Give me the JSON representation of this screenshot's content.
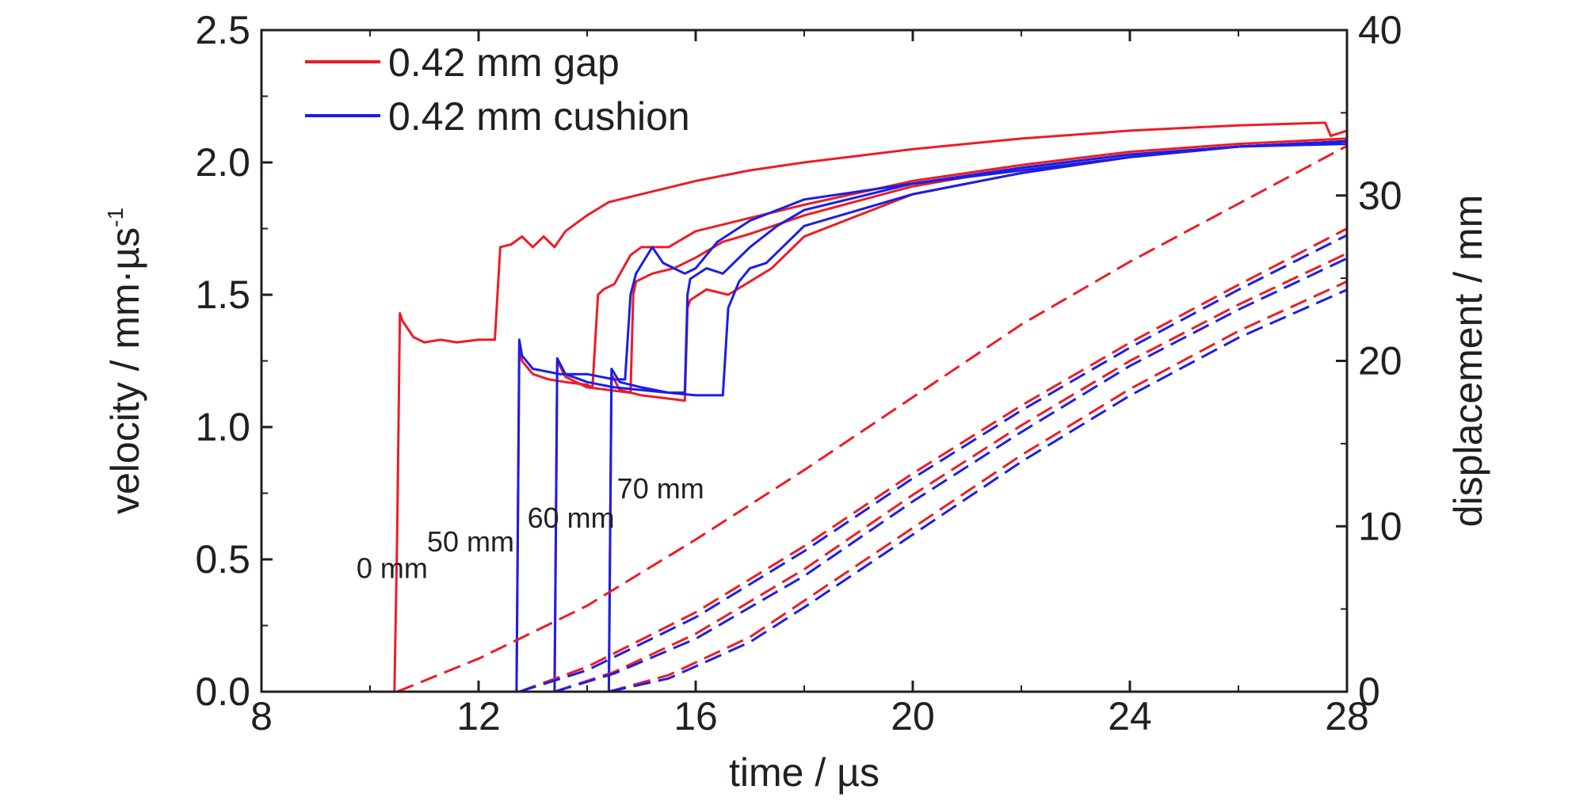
{
  "chart_data": {
    "type": "line",
    "xlabel": "time / µs",
    "ylabel": "velocity / mm·µs",
    "ylabel_sup": "-1",
    "y2label": "displacement / mm",
    "xlim": [
      8,
      28
    ],
    "ylim": [
      0,
      2.5
    ],
    "y2lim": [
      0,
      40
    ],
    "xticks": [
      "8",
      "12",
      "16",
      "20",
      "24",
      "28"
    ],
    "yticks": [
      "0.0",
      "0.5",
      "1.0",
      "1.5",
      "2.0",
      "2.5"
    ],
    "y2ticks": [
      "0",
      "10",
      "20",
      "30",
      "40"
    ],
    "colors": {
      "gap": "#ee1c25",
      "cushion": "#1b1ee6",
      "axis": "#231f20"
    },
    "legend": [
      {
        "label": "0.42 mm gap",
        "color": "#ee1c25"
      },
      {
        "label": "0.42 mm cushion",
        "color": "#1b1ee6"
      }
    ],
    "annotations": [
      {
        "text": "0 mm",
        "x": 9.75,
        "y": 0.43
      },
      {
        "text": "50 mm",
        "x": 11.05,
        "y": 0.53
      },
      {
        "text": "60 mm",
        "x": 12.9,
        "y": 0.62
      },
      {
        "text": "70 mm",
        "x": 14.55,
        "y": 0.73
      }
    ],
    "series": [
      {
        "group": "gap",
        "kind": "velocity",
        "color": "#ee1c25",
        "x": [
          8,
          10.45,
          10.5,
          10.55,
          10.6,
          10.8,
          11.0,
          11.3,
          11.6,
          12.0,
          12.3,
          12.4,
          12.6,
          12.8,
          13.0,
          13.2,
          13.4,
          13.6,
          14.0,
          14.4,
          15.0,
          16.0,
          17.0,
          18.0,
          20.0,
          22.0,
          24.0,
          26.0,
          27.6,
          27.7,
          28.0
        ],
        "y": [
          0,
          0,
          0.6,
          1.43,
          1.4,
          1.34,
          1.32,
          1.33,
          1.32,
          1.33,
          1.33,
          1.68,
          1.69,
          1.72,
          1.68,
          1.72,
          1.68,
          1.74,
          1.8,
          1.85,
          1.88,
          1.93,
          1.97,
          2.0,
          2.05,
          2.09,
          2.12,
          2.14,
          2.15,
          2.1,
          2.12
        ]
      },
      {
        "group": "gap",
        "kind": "velocity",
        "color": "#ee1c25",
        "x": [
          8,
          12.7,
          12.75,
          12.8,
          13.0,
          13.3,
          13.6,
          14.0,
          14.1,
          14.2,
          14.3,
          14.5,
          14.8,
          15.0,
          15.5,
          16.0,
          17.0,
          18.0,
          20.0,
          22.0,
          24.0,
          26.0,
          28.0
        ],
        "y": [
          0,
          0,
          1.3,
          1.25,
          1.2,
          1.18,
          1.17,
          1.16,
          1.15,
          1.5,
          1.52,
          1.54,
          1.65,
          1.68,
          1.68,
          1.74,
          1.79,
          1.84,
          1.93,
          1.99,
          2.04,
          2.07,
          2.09
        ]
      },
      {
        "group": "gap",
        "kind": "velocity",
        "color": "#ee1c25",
        "x": [
          8,
          13.4,
          13.45,
          13.6,
          14.0,
          14.4,
          14.8,
          14.85,
          14.9,
          15.2,
          15.6,
          16.0,
          16.5,
          17.0,
          18.0,
          20.0,
          22.0,
          24.0,
          26.0,
          28.0
        ],
        "y": [
          0,
          0,
          1.25,
          1.19,
          1.15,
          1.14,
          1.13,
          1.5,
          1.55,
          1.58,
          1.6,
          1.64,
          1.7,
          1.73,
          1.8,
          1.91,
          1.98,
          2.03,
          2.06,
          2.08
        ]
      },
      {
        "group": "gap",
        "kind": "velocity",
        "color": "#ee1c25",
        "x": [
          8,
          14.4,
          14.45,
          14.6,
          15.0,
          15.4,
          15.8,
          15.85,
          15.9,
          16.2,
          16.6,
          17.0,
          17.4,
          18.0,
          20.0,
          22.0,
          24.0,
          26.0,
          28.0
        ],
        "y": [
          0,
          0,
          1.2,
          1.14,
          1.12,
          1.11,
          1.1,
          1.45,
          1.48,
          1.52,
          1.5,
          1.55,
          1.6,
          1.72,
          1.88,
          1.96,
          2.02,
          2.06,
          2.08
        ]
      },
      {
        "group": "cushion",
        "kind": "velocity",
        "color": "#1b1ee6",
        "x": [
          8,
          12.7,
          12.75,
          12.8,
          13.0,
          13.5,
          14.0,
          14.5,
          14.7,
          14.8,
          14.9,
          15.2,
          15.4,
          15.6,
          15.8,
          16.0,
          16.4,
          17.0,
          17.5,
          18.0,
          20.0,
          22.0,
          24.0,
          26.0,
          28.0
        ],
        "y": [
          0,
          0,
          1.33,
          1.27,
          1.22,
          1.2,
          1.2,
          1.18,
          1.18,
          1.5,
          1.58,
          1.68,
          1.62,
          1.6,
          1.58,
          1.6,
          1.7,
          1.78,
          1.82,
          1.86,
          1.92,
          1.98,
          2.03,
          2.06,
          2.08
        ]
      },
      {
        "group": "cushion",
        "kind": "velocity",
        "color": "#1b1ee6",
        "x": [
          8,
          13.4,
          13.45,
          13.6,
          14.0,
          14.5,
          15.0,
          15.5,
          15.8,
          15.85,
          15.9,
          16.2,
          16.5,
          17.0,
          17.5,
          18.0,
          20.0,
          22.0,
          24.0,
          26.0,
          28.0
        ],
        "y": [
          0,
          0,
          1.26,
          1.2,
          1.17,
          1.15,
          1.14,
          1.13,
          1.13,
          1.5,
          1.56,
          1.6,
          1.58,
          1.68,
          1.76,
          1.82,
          1.92,
          1.97,
          2.02,
          2.06,
          2.08
        ]
      },
      {
        "group": "cushion",
        "kind": "velocity",
        "color": "#1b1ee6",
        "x": [
          8,
          14.4,
          14.45,
          14.6,
          15.0,
          15.5,
          16.0,
          16.5,
          16.6,
          16.8,
          17.0,
          17.3,
          17.6,
          18.0,
          20.0,
          22.0,
          24.0,
          26.0,
          28.0
        ],
        "y": [
          0,
          0,
          1.22,
          1.17,
          1.15,
          1.13,
          1.12,
          1.12,
          1.45,
          1.55,
          1.6,
          1.62,
          1.68,
          1.76,
          1.88,
          1.96,
          2.02,
          2.06,
          2.07
        ]
      },
      {
        "group": "gap",
        "kind": "displacement",
        "color": "#ee1c25",
        "x": [
          10.5,
          12.0,
          14.0,
          16.0,
          18.0,
          20.0,
          22.0,
          24.0,
          26.0,
          28.0
        ],
        "y": [
          0,
          2.0,
          5.2,
          9.2,
          13.4,
          17.8,
          22.2,
          26.0,
          29.5,
          33.0
        ]
      },
      {
        "group": "gap",
        "kind": "displacement",
        "color": "#ee1c25",
        "x": [
          12.75,
          14.0,
          16.0,
          18.0,
          20.0,
          22.0,
          24.0,
          26.0,
          28.0
        ],
        "y": [
          0,
          1.5,
          4.8,
          8.8,
          13.2,
          17.3,
          21.1,
          24.6,
          28.0
        ]
      },
      {
        "group": "cushion",
        "kind": "displacement",
        "color": "#1b1ee6",
        "x": [
          12.75,
          14.0,
          16.0,
          18.0,
          20.0,
          22.0,
          24.0,
          26.0,
          28.0
        ],
        "y": [
          0,
          1.3,
          4.5,
          8.5,
          12.9,
          17.0,
          20.8,
          24.3,
          27.6
        ]
      },
      {
        "group": "gap",
        "kind": "displacement",
        "color": "#ee1c25",
        "x": [
          13.4,
          14.5,
          16.0,
          18.0,
          20.0,
          22.0,
          24.0,
          26.0,
          28.0
        ],
        "y": [
          0,
          1.2,
          3.5,
          7.4,
          11.9,
          16.1,
          20.0,
          23.4,
          26.5
        ]
      },
      {
        "group": "cushion",
        "kind": "displacement",
        "color": "#1b1ee6",
        "x": [
          13.4,
          14.5,
          16.0,
          18.0,
          20.0,
          22.0,
          24.0,
          26.0,
          28.0
        ],
        "y": [
          0,
          1.1,
          3.2,
          7.0,
          11.5,
          15.7,
          19.7,
          23.1,
          26.2
        ]
      },
      {
        "group": "gap",
        "kind": "displacement",
        "color": "#ee1c25",
        "x": [
          14.4,
          15.5,
          17.0,
          18.0,
          20.0,
          22.0,
          24.0,
          26.0,
          28.0
        ],
        "y": [
          0,
          1.0,
          3.3,
          5.5,
          9.9,
          14.3,
          18.3,
          21.8,
          24.8
        ]
      },
      {
        "group": "cushion",
        "kind": "displacement",
        "color": "#1b1ee6",
        "x": [
          14.4,
          15.5,
          17.0,
          18.0,
          20.0,
          22.0,
          24.0,
          26.0,
          28.0
        ],
        "y": [
          0,
          0.8,
          3.0,
          5.1,
          9.5,
          13.9,
          17.9,
          21.4,
          24.3
        ]
      }
    ]
  }
}
